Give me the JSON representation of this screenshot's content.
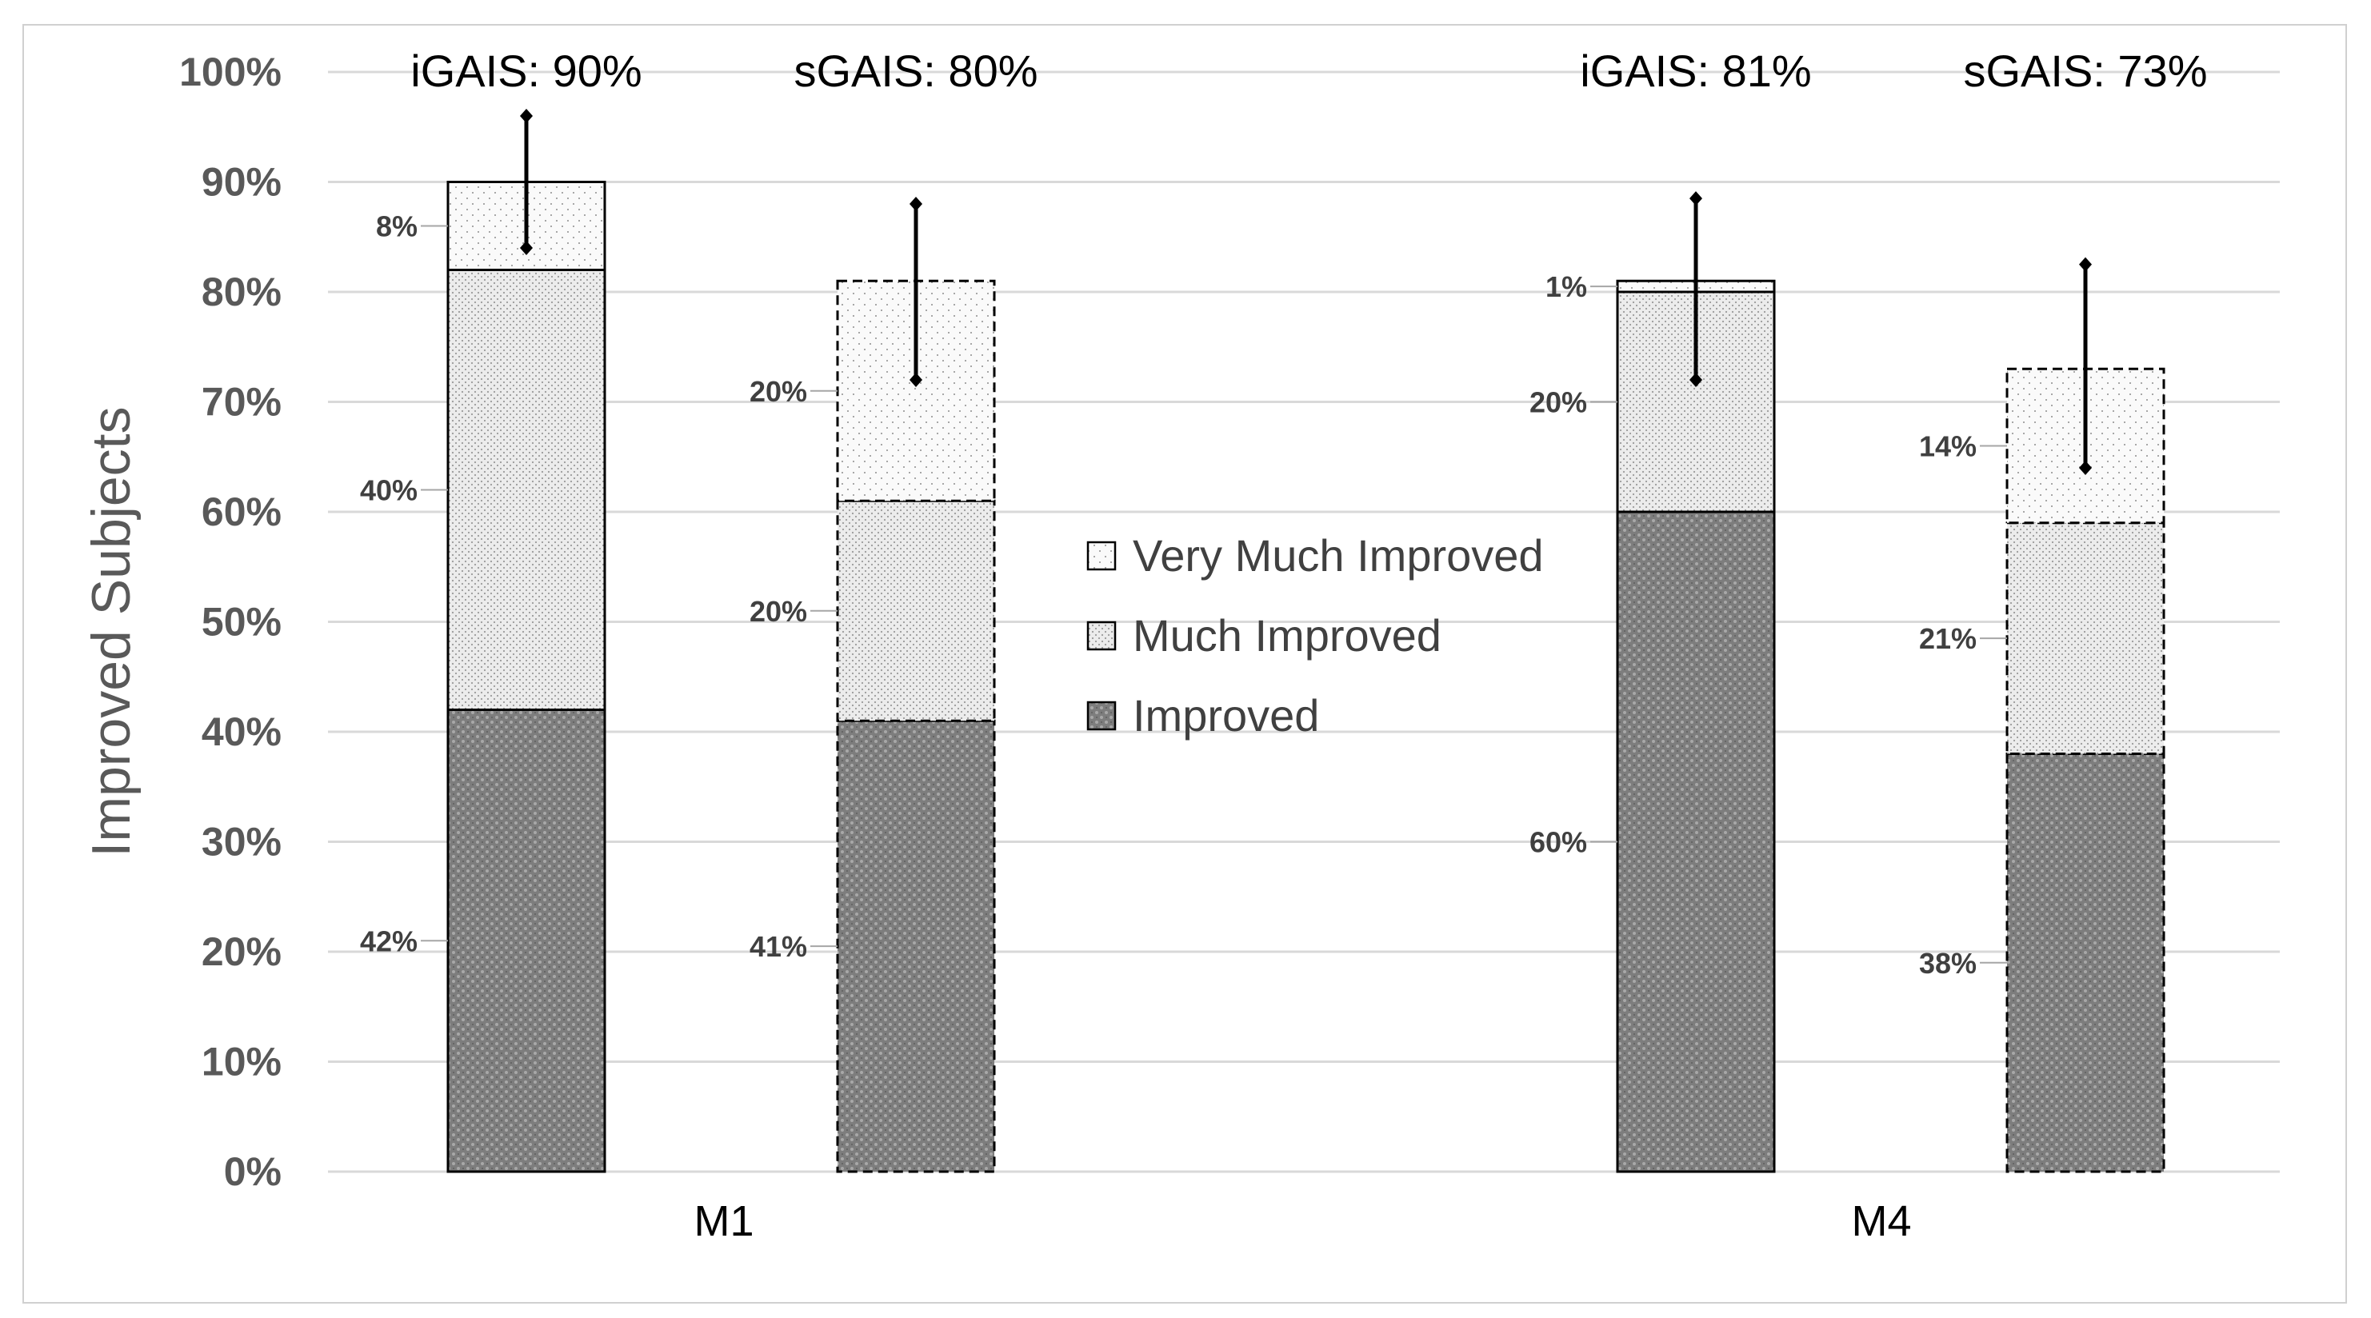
{
  "chart_data": {
    "type": "bar",
    "stacked": true,
    "title": "",
    "ylabel": "Improved Subjects",
    "xlabel": "",
    "ylim": [
      0,
      100
    ],
    "y_ticks": [
      "0%",
      "10%",
      "20%",
      "30%",
      "40%",
      "50%",
      "60%",
      "70%",
      "80%",
      "90%",
      "100%"
    ],
    "grid": true,
    "legend_position": "center",
    "series_names": [
      "Very Much Improved",
      "Much Improved",
      "Improved"
    ],
    "groups": [
      {
        "category": "M1",
        "bars": [
          {
            "id": "m1-igais",
            "header": "iGAIS: 90%",
            "total": 90,
            "border": "solid",
            "improved": 42,
            "improved_label": "42%",
            "much": 40,
            "much_label": "40%",
            "very": 8,
            "very_label": "8%",
            "error": [
              84,
              96
            ]
          },
          {
            "id": "m1-sgais",
            "header": "sGAIS: 80%",
            "total": 80,
            "border": "dashed",
            "improved": 41,
            "improved_label": "41%",
            "much": 20,
            "much_label": "20%",
            "very": 20,
            "very_label": "20%",
            "error": [
              72,
              88
            ]
          }
        ]
      },
      {
        "category": "M4",
        "bars": [
          {
            "id": "m4-igais",
            "header": "iGAIS: 81%",
            "total": 81,
            "border": "solid",
            "improved": 60,
            "improved_label": "60%",
            "much": 20,
            "much_label": "20%",
            "very": 1,
            "very_label": "1%",
            "error": [
              72,
              88.5
            ]
          },
          {
            "id": "m4-sgais",
            "header": "sGAIS: 73%",
            "total": 73,
            "border": "dashed",
            "improved": 38,
            "improved_label": "38%",
            "much": 21,
            "much_label": "21%",
            "very": 14,
            "very_label": "14%",
            "error": [
              64,
              82.5
            ]
          }
        ]
      }
    ],
    "colors": {
      "improved_fill": "#8a8a8a",
      "much_fill": "#e4e4e4",
      "very_fill": "#f7f7f7",
      "border": "#000000",
      "grid": "#d9d9d9",
      "tick_text": "#595959"
    }
  }
}
